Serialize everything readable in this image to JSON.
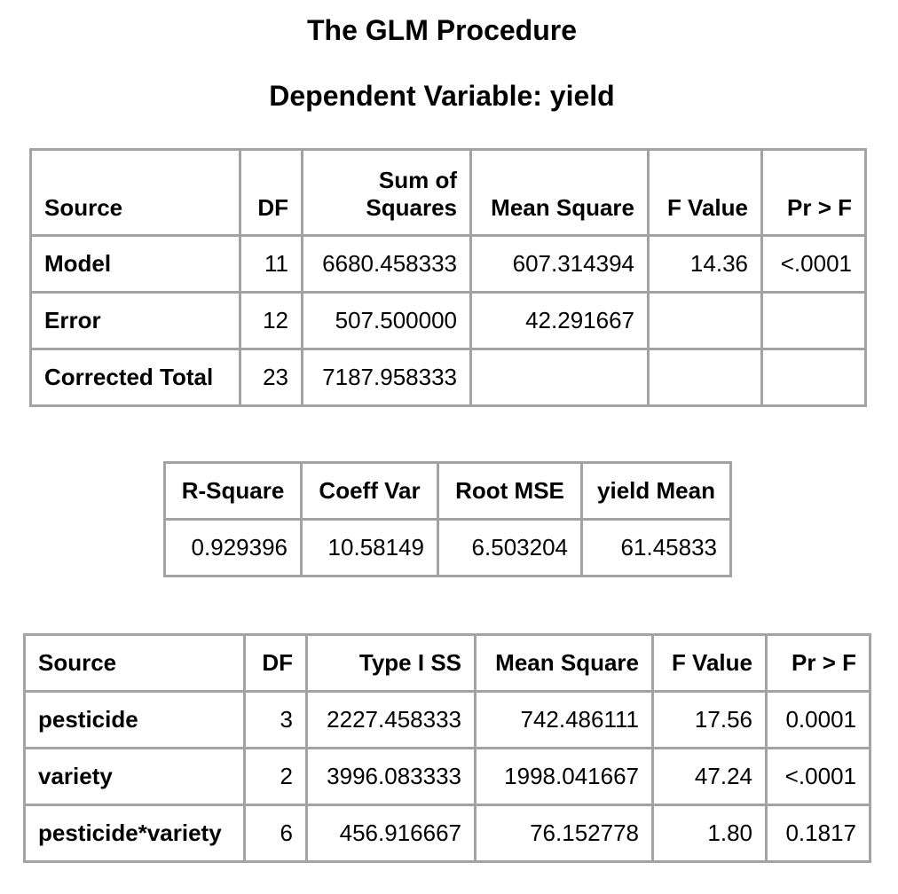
{
  "title": "The GLM Procedure",
  "subtitle": "Dependent Variable: yield",
  "anova": {
    "headers": {
      "source": "Source",
      "df": "DF",
      "ss_line1": "Sum of",
      "ss_line2": "Squares",
      "ms": "Mean Square",
      "f": "F Value",
      "p": "Pr > F"
    },
    "rows": [
      {
        "source": "Model",
        "df": "11",
        "ss": "6680.458333",
        "ms": "607.314394",
        "f": "14.36",
        "p": "<.0001"
      },
      {
        "source": "Error",
        "df": "12",
        "ss": "507.500000",
        "ms": "42.291667",
        "f": "",
        "p": ""
      },
      {
        "source": "Corrected Total",
        "df": "23",
        "ss": "7187.958333",
        "ms": "",
        "f": "",
        "p": ""
      }
    ]
  },
  "fit": {
    "headers": {
      "rsq": "R-Square",
      "cv": "Coeff Var",
      "rmse": "Root MSE",
      "mean": "yield Mean"
    },
    "values": {
      "rsq": "0.929396",
      "cv": "10.58149",
      "rmse": "6.503204",
      "mean": "61.45833"
    }
  },
  "type1": {
    "headers": {
      "source": "Source",
      "df": "DF",
      "ss": "Type I SS",
      "ms": "Mean Square",
      "f": "F Value",
      "p": "Pr > F"
    },
    "rows": [
      {
        "source": "pesticide",
        "df": "3",
        "ss": "2227.458333",
        "ms": "742.486111",
        "f": "17.56",
        "p": "0.0001"
      },
      {
        "source": "variety",
        "df": "2",
        "ss": "3996.083333",
        "ms": "1998.041667",
        "f": "47.24",
        "p": "<.0001"
      },
      {
        "source": "pesticide*variety",
        "df": "6",
        "ss": "456.916667",
        "ms": "76.152778",
        "f": "1.80",
        "p": "0.1817"
      }
    ]
  }
}
